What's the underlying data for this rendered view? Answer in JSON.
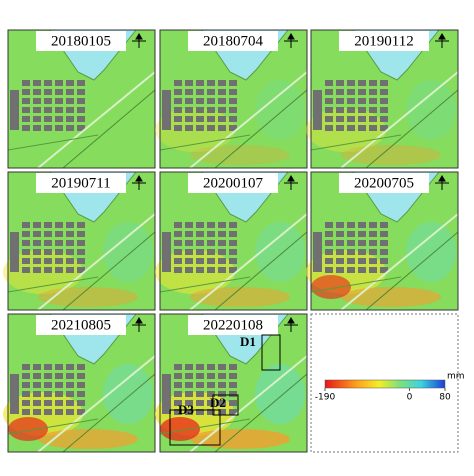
{
  "panels": [
    {
      "date": "20180105"
    },
    {
      "date": "20180704"
    },
    {
      "date": "20190112"
    },
    {
      "date": "20190711"
    },
    {
      "date": "20200107"
    },
    {
      "date": "20200705"
    },
    {
      "date": "20210805"
    },
    {
      "date": "20220108"
    }
  ],
  "annotations": [
    "D1",
    "D2",
    "D3"
  ],
  "colorbar": {
    "range": [
      -190,
      80
    ],
    "ticks": [
      -190,
      0,
      80
    ],
    "unit": "mm"
  }
}
